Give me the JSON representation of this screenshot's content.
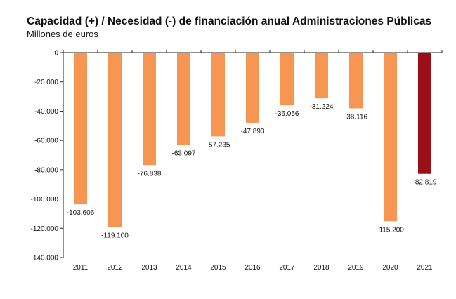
{
  "chart_data": {
    "type": "bar",
    "title": "Capacidad (+) / Necesidad (-) de financiación anual Administraciones Públicas",
    "subtitle": "Millones de euros",
    "xlabel": "",
    "ylabel": "",
    "categories": [
      "2011",
      "2012",
      "2013",
      "2014",
      "2015",
      "2016",
      "2017",
      "2018",
      "2019",
      "2020",
      "2021"
    ],
    "values": [
      -103606,
      -119100,
      -76838,
      -63097,
      -57235,
      -47893,
      -36056,
      -31224,
      -38116,
      -115200,
      -82819
    ],
    "data_labels": [
      "-103.606",
      "-119.100",
      "-76.838",
      "-63.097",
      "-57.235",
      "-47.893",
      "-36.056",
      "-31.224",
      "-38.116",
      "-115.200",
      "-82.819"
    ],
    "ylim": [
      -140000,
      0
    ],
    "yticks": [
      0,
      -20000,
      -40000,
      -60000,
      -80000,
      -100000,
      -120000,
      -140000
    ],
    "ytick_labels": [
      "0",
      "-20.000",
      "-40.000",
      "-60.000",
      "-80.000",
      "-100.000",
      "-120.000",
      "-140.000"
    ],
    "grid": false,
    "legend": "none",
    "colors": {
      "default": "#F79552",
      "highlight": "#9B1018",
      "highlight_category": "2021"
    }
  }
}
